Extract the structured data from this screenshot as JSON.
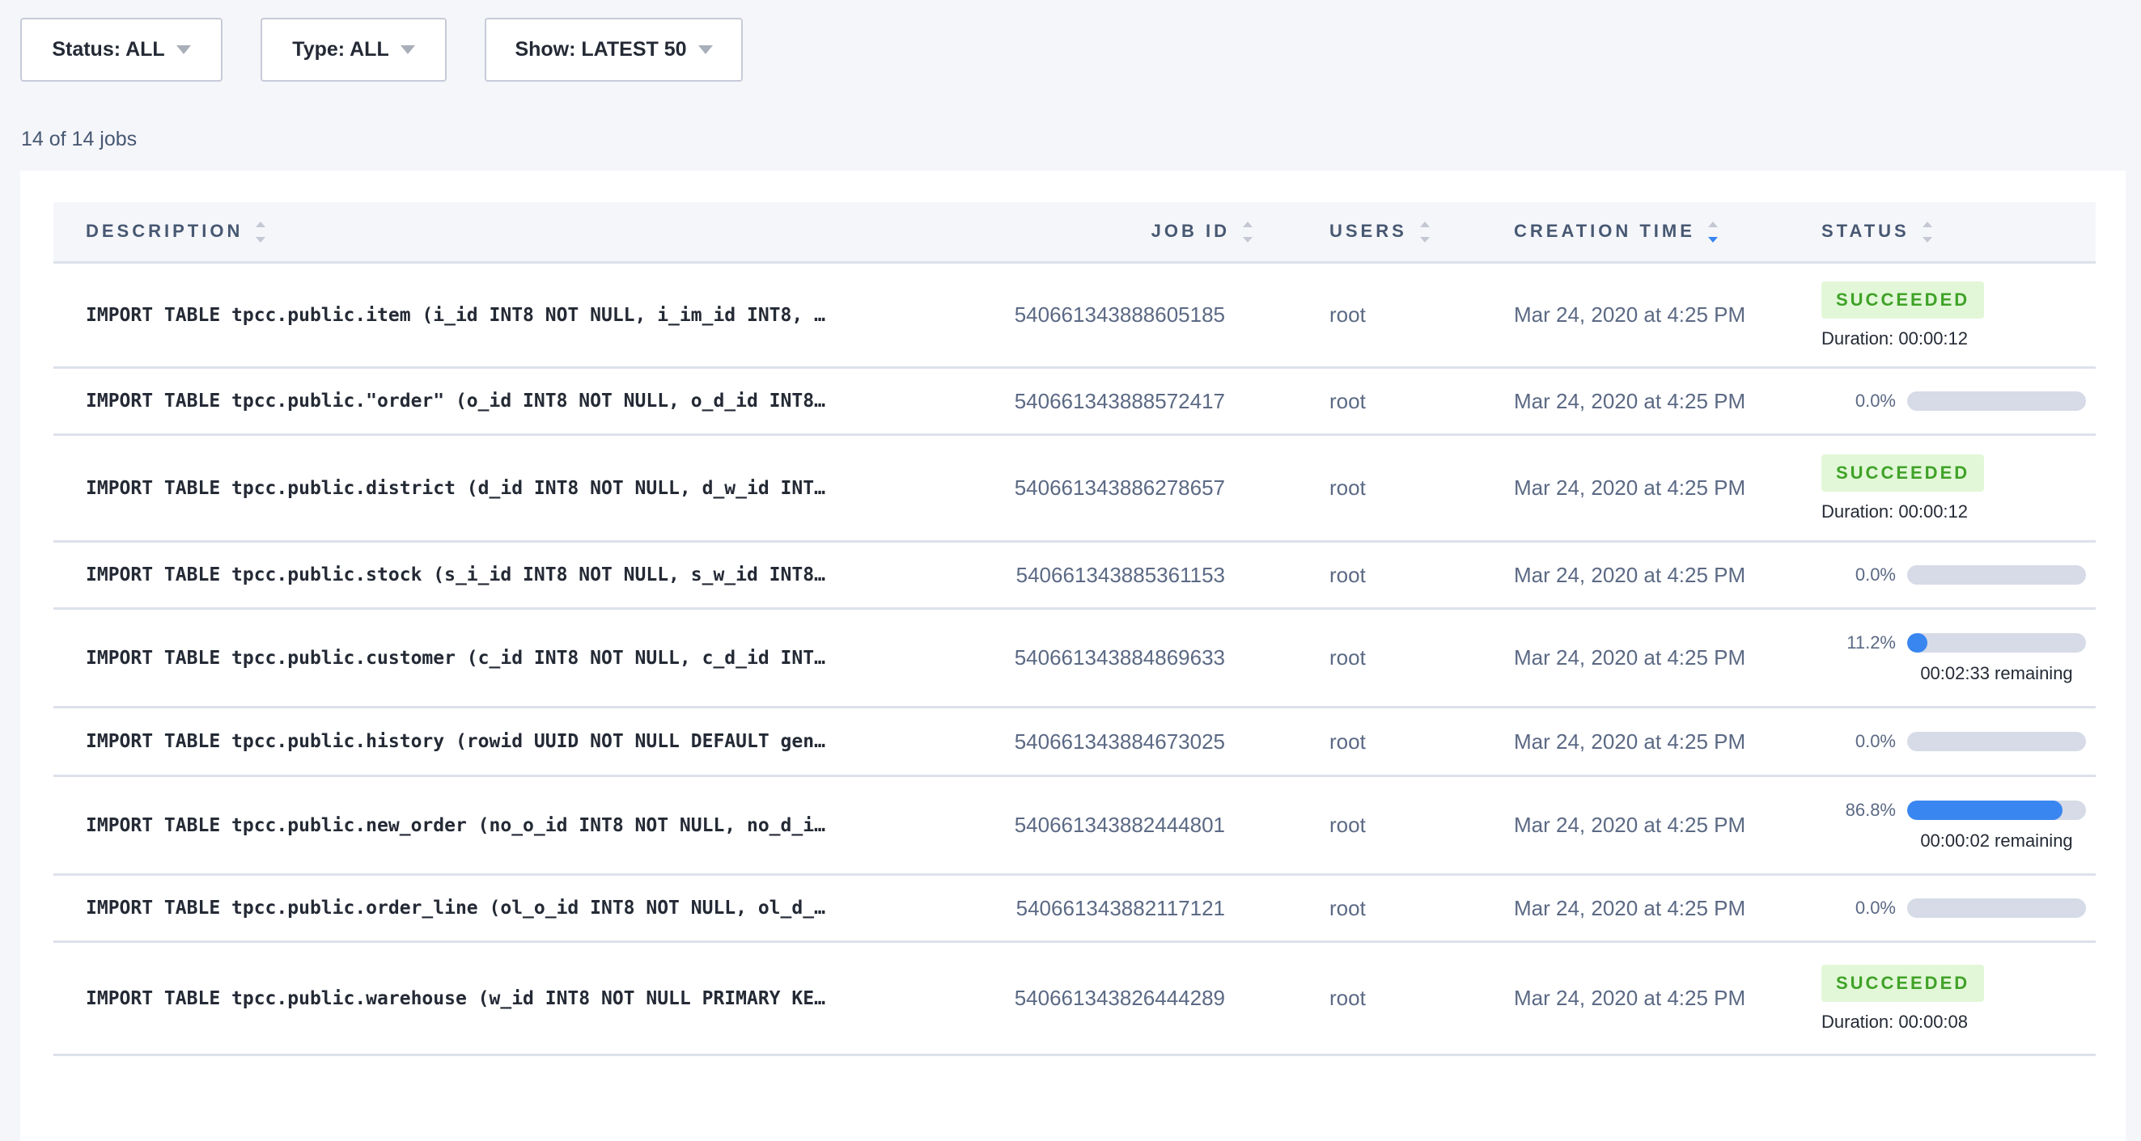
{
  "filters": {
    "status": "Status: ALL",
    "type": "Type: ALL",
    "show": "Show: LATEST 50"
  },
  "count": "14 of 14 jobs",
  "columns": {
    "description": "DESCRIPTION",
    "job_id": "JOB ID",
    "users": "USERS",
    "creation_time": "CREATION TIME",
    "status": "STATUS"
  },
  "sort": {
    "column": "creation_time",
    "direction": "descending"
  },
  "colors": {
    "accent": "#3a86f0",
    "success_bg": "#e2f7d8",
    "success_text": "#3fa227",
    "track": "#d6dbe7"
  },
  "rows": [
    {
      "description": "IMPORT TABLE tpcc.public.item (i_id INT8 NOT NULL, i_im_id INT8, …",
      "job_id": "540661343888605185",
      "user": "root",
      "created": "Mar 24, 2020 at 4:25 PM",
      "status": "SUCCEEDED",
      "duration": "Duration: 00:00:12"
    },
    {
      "description": "IMPORT TABLE tpcc.public.\"order\" (o_id INT8 NOT NULL, o_d_id INT8…",
      "job_id": "540661343888572417",
      "user": "root",
      "created": "Mar 24, 2020 at 4:25 PM",
      "progress": 0.0,
      "progress_label": "0.0%"
    },
    {
      "description": "IMPORT TABLE tpcc.public.district (d_id INT8 NOT NULL, d_w_id INT…",
      "job_id": "540661343886278657",
      "user": "root",
      "created": "Mar 24, 2020 at 4:25 PM",
      "status": "SUCCEEDED",
      "duration": "Duration: 00:00:12"
    },
    {
      "description": "IMPORT TABLE tpcc.public.stock (s_i_id INT8 NOT NULL, s_w_id INT8…",
      "job_id": "540661343885361153",
      "user": "root",
      "created": "Mar 24, 2020 at 4:25 PM",
      "progress": 0.0,
      "progress_label": "0.0%"
    },
    {
      "description": "IMPORT TABLE tpcc.public.customer (c_id INT8 NOT NULL, c_d_id INT…",
      "job_id": "540661343884869633",
      "user": "root",
      "created": "Mar 24, 2020 at 4:25 PM",
      "progress": 11.2,
      "progress_label": "11.2%",
      "remaining": "00:02:33 remaining"
    },
    {
      "description": "IMPORT TABLE tpcc.public.history (rowid UUID NOT NULL DEFAULT gen…",
      "job_id": "540661343884673025",
      "user": "root",
      "created": "Mar 24, 2020 at 4:25 PM",
      "progress": 0.0,
      "progress_label": "0.0%"
    },
    {
      "description": "IMPORT TABLE tpcc.public.new_order (no_o_id INT8 NOT NULL, no_d_i…",
      "job_id": "540661343882444801",
      "user": "root",
      "created": "Mar 24, 2020 at 4:25 PM",
      "progress": 86.8,
      "progress_label": "86.8%",
      "remaining": "00:00:02 remaining"
    },
    {
      "description": "IMPORT TABLE tpcc.public.order_line (ol_o_id INT8 NOT NULL, ol_d_…",
      "job_id": "540661343882117121",
      "user": "root",
      "created": "Mar 24, 2020 at 4:25 PM",
      "progress": 0.0,
      "progress_label": "0.0%"
    },
    {
      "description": "IMPORT TABLE tpcc.public.warehouse (w_id INT8 NOT NULL PRIMARY KE…",
      "job_id": "540661343826444289",
      "user": "root",
      "created": "Mar 24, 2020 at 4:25 PM",
      "status": "SUCCEEDED",
      "duration": "Duration: 00:00:08"
    }
  ]
}
